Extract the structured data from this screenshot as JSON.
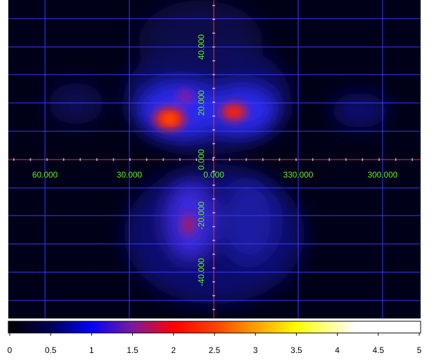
{
  "image": {
    "x_labels": [
      "60.000",
      "30.000",
      "0.000",
      "330.000",
      "300.000"
    ],
    "y_labels": [
      "40.000",
      "20.000",
      "0.000",
      "-20.000",
      "-40.000"
    ]
  },
  "colorbar": {
    "ticks": [
      0,
      0.5,
      1,
      1.5,
      2,
      2.5,
      3,
      3.5,
      4,
      4.5,
      5
    ]
  }
}
